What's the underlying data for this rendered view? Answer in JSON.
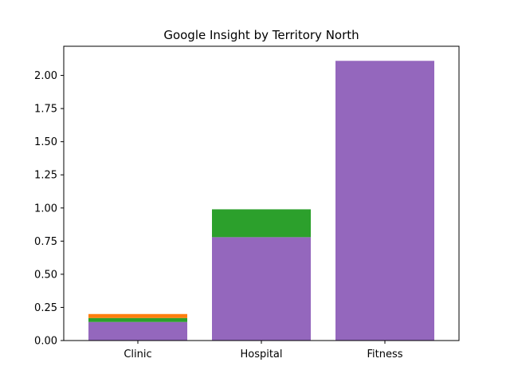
{
  "chart_data": {
    "type": "bar",
    "stacked": true,
    "title": "Google Insight by Territory North",
    "xlabel": "",
    "ylabel": "",
    "categories": [
      "Clinic",
      "Hospital",
      "Fitness"
    ],
    "series": [
      {
        "color": "#9467bd",
        "values": [
          0.14,
          0.78,
          2.11
        ]
      },
      {
        "color": "#2ca02c",
        "values": [
          0.03,
          0.21,
          0.0
        ]
      },
      {
        "color": "#ff7f0e",
        "values": [
          0.03,
          0.0,
          0.0
        ]
      }
    ],
    "ylim": [
      0,
      2.22
    ],
    "yticks": [
      "0.00",
      "0.25",
      "0.50",
      "0.75",
      "1.00",
      "1.25",
      "1.50",
      "1.75",
      "2.00"
    ],
    "grid": false,
    "legend": "none"
  }
}
